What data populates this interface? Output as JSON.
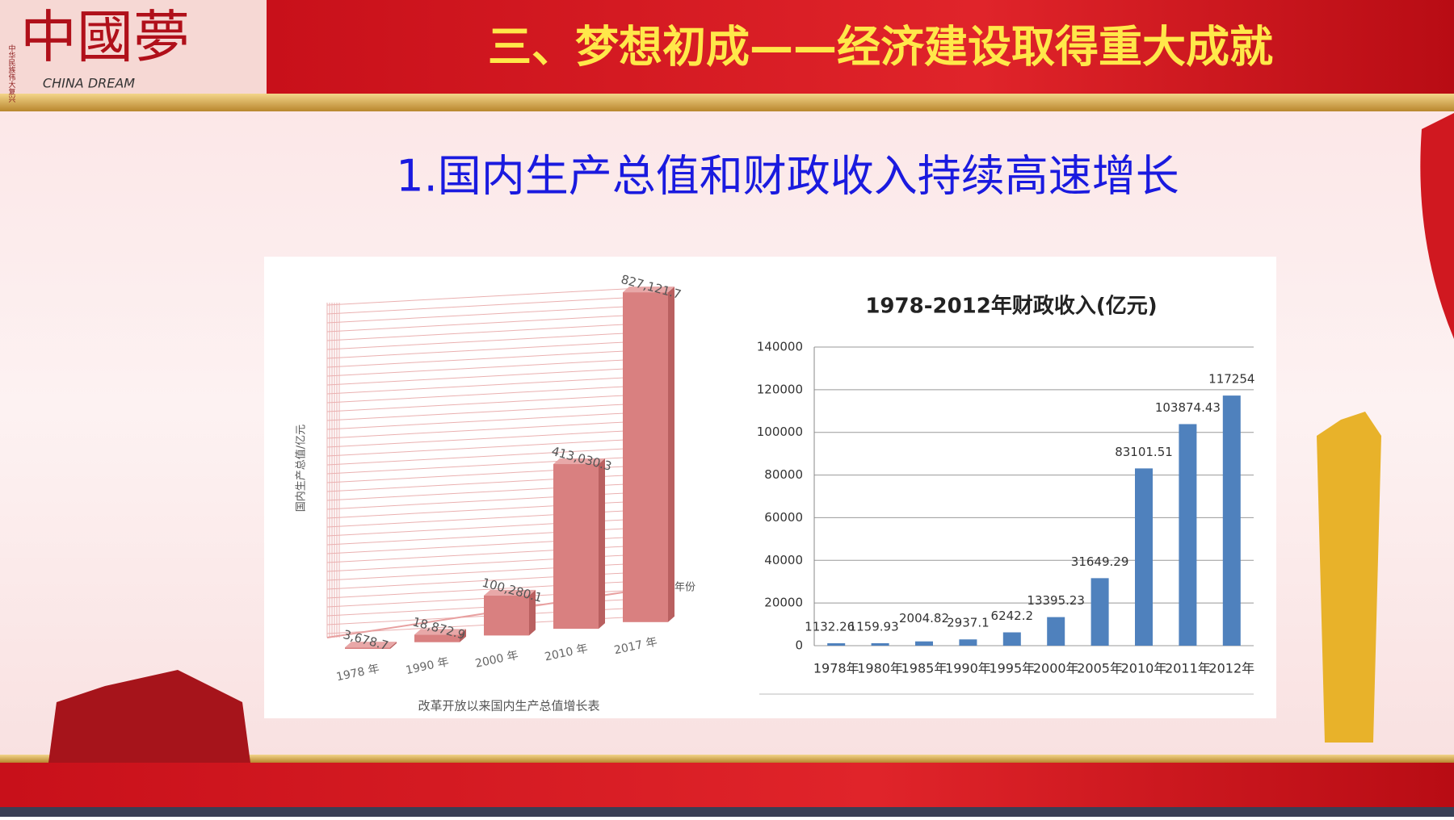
{
  "header": {
    "logo": "中國夢",
    "logo_small": "中华民族伟大复兴",
    "logo_sub": "CHINA DREAM",
    "title": "三、梦想初成——经济建设取得重大成就"
  },
  "subtitle": "1.国内生产总值和财政收入持续高速增长",
  "chart_data": [
    {
      "type": "bar3d",
      "y_label": "国内生产总值/亿元",
      "x_label": "年份",
      "caption": "改革开放以来国内生产总值增长表",
      "categories": [
        "1978 年",
        "1990 年",
        "2000 年",
        "2010 年",
        "2017 年"
      ],
      "values": [
        3678.7,
        18872.9,
        100280.1,
        413030.3,
        827121.7
      ],
      "value_labels": [
        "3,678.7",
        "18,872.9",
        "100,280.1",
        "413,030.3",
        "827,121.7"
      ],
      "color": "#d98080",
      "ylim": [
        0,
        850000
      ]
    },
    {
      "type": "bar",
      "title": "1978-2012年财政收入(亿元)",
      "categories": [
        "1978年",
        "1980年",
        "1985年",
        "1990年",
        "1995年",
        "2000年",
        "2005年",
        "2010年",
        "2011年",
        "2012年"
      ],
      "values": [
        1132.26,
        1159.93,
        2004.82,
        2937.1,
        6242.2,
        13395.23,
        31649.29,
        83101.51,
        103874.43,
        117254
      ],
      "color": "#4f81bd",
      "ylim": [
        0,
        140000
      ],
      "yticks": [
        0,
        20000,
        40000,
        60000,
        80000,
        100000,
        120000,
        140000
      ],
      "grid": true
    }
  ]
}
